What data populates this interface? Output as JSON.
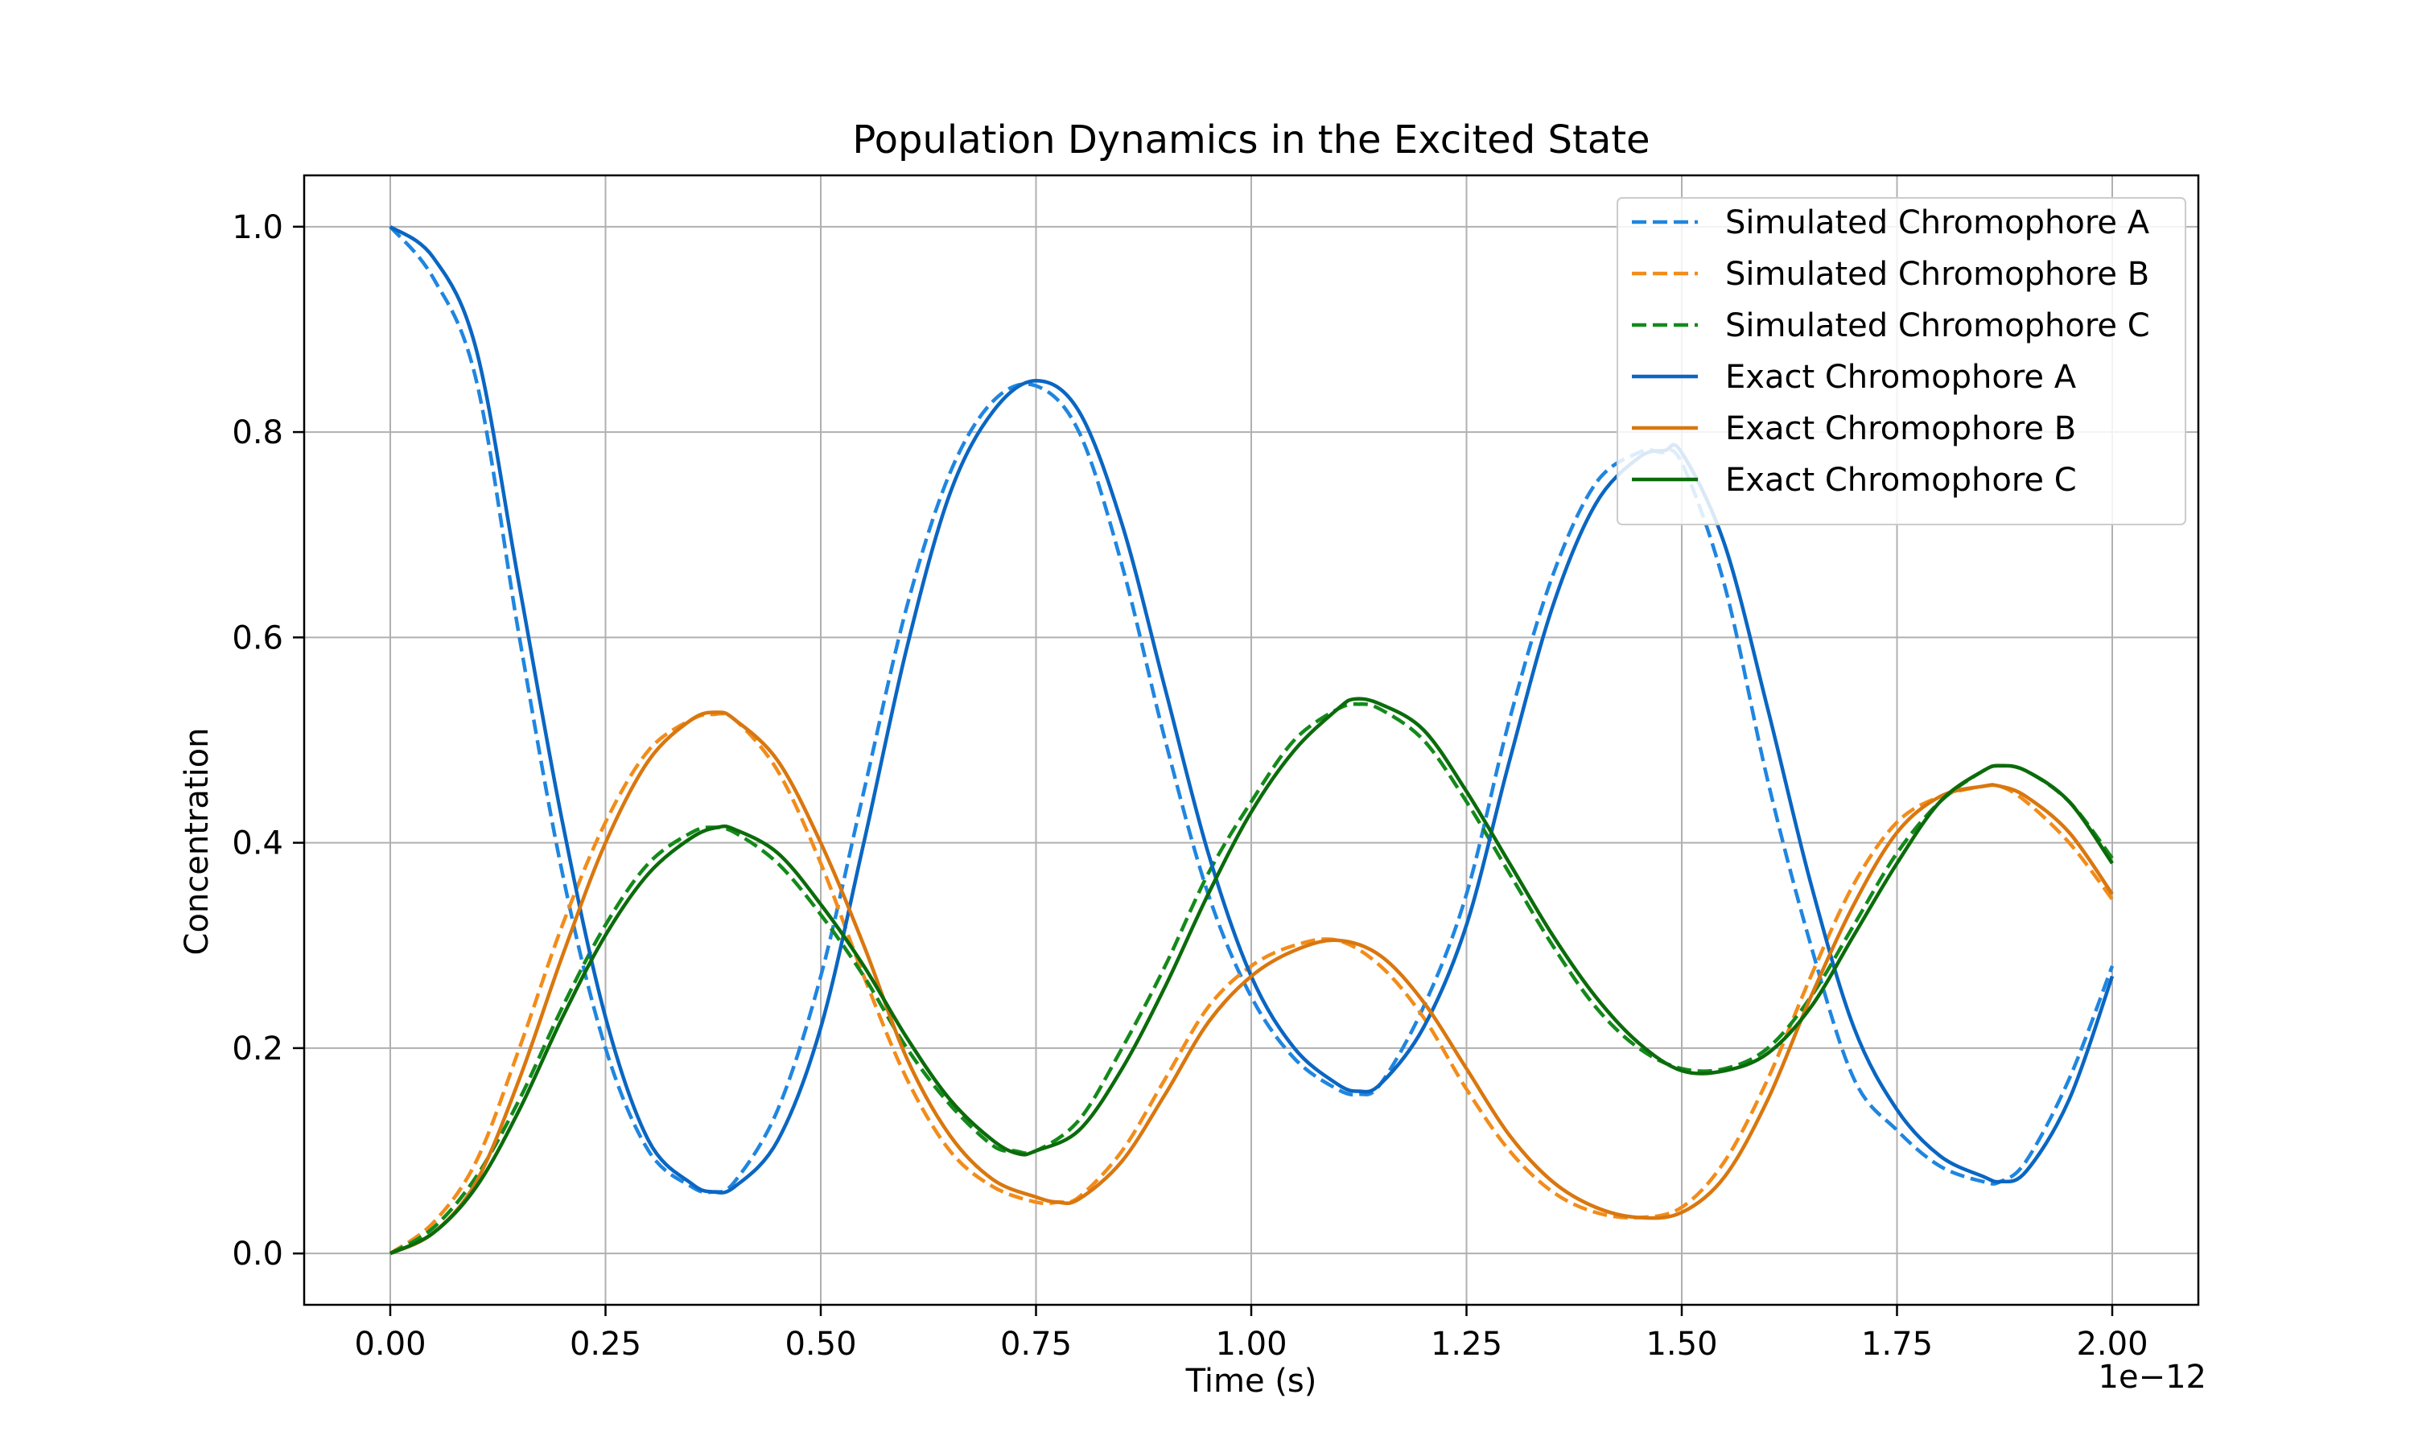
{
  "chart_data": {
    "type": "line",
    "title": "Population Dynamics in the Excited State",
    "xlabel": "Time (s)",
    "ylabel": "Concentration",
    "x_offset_label": "1e−12",
    "xlim": [
      -0.1,
      2.1
    ],
    "ylim": [
      -0.05,
      1.05
    ],
    "x_ticks": [
      0,
      0.25,
      0.5,
      0.75,
      1.0,
      1.25,
      1.5,
      1.75,
      2.0
    ],
    "x_tick_labels": [
      "0.00",
      "0.25",
      "0.50",
      "0.75",
      "1.00",
      "1.25",
      "1.50",
      "1.75",
      "2.00"
    ],
    "y_ticks": [
      0,
      0.2,
      0.4,
      0.6,
      0.8,
      1.0
    ],
    "y_tick_labels": [
      "0.0",
      "0.2",
      "0.4",
      "0.6",
      "0.8",
      "1.0"
    ],
    "grid": true,
    "legend_position": "top-right",
    "series": [
      {
        "name": "Simulated Chromophore A",
        "style": "dashed",
        "color": "#1f86e0",
        "x": [
          0,
          0.05,
          0.1,
          0.15,
          0.2,
          0.25,
          0.3,
          0.35,
          0.375,
          0.4,
          0.45,
          0.5,
          0.55,
          0.6,
          0.65,
          0.7,
          0.75,
          0.8,
          0.85,
          0.9,
          0.95,
          1.0,
          1.05,
          1.1,
          1.125,
          1.15,
          1.2,
          1.25,
          1.3,
          1.35,
          1.4,
          1.45,
          1.475,
          1.5,
          1.55,
          1.6,
          1.65,
          1.7,
          1.75,
          1.8,
          1.85,
          1.87,
          1.9,
          1.95,
          2.0
        ],
        "y": [
          1.0,
          0.95,
          0.85,
          0.6,
          0.37,
          0.2,
          0.1,
          0.065,
          0.06,
          0.07,
          0.14,
          0.27,
          0.45,
          0.63,
          0.76,
          0.83,
          0.845,
          0.8,
          0.67,
          0.5,
          0.35,
          0.25,
          0.19,
          0.16,
          0.155,
          0.165,
          0.24,
          0.35,
          0.52,
          0.66,
          0.75,
          0.78,
          0.78,
          0.77,
          0.65,
          0.46,
          0.3,
          0.17,
          0.12,
          0.085,
          0.07,
          0.07,
          0.09,
          0.17,
          0.28
        ]
      },
      {
        "name": "Simulated Chromophore B",
        "style": "dashed",
        "color": "#f28c1a",
        "x": [
          0,
          0.05,
          0.1,
          0.15,
          0.2,
          0.25,
          0.3,
          0.35,
          0.375,
          0.4,
          0.45,
          0.5,
          0.55,
          0.6,
          0.65,
          0.7,
          0.75,
          0.775,
          0.8,
          0.85,
          0.9,
          0.95,
          1.0,
          1.05,
          1.1,
          1.15,
          1.2,
          1.25,
          1.3,
          1.35,
          1.4,
          1.45,
          1.5,
          1.55,
          1.6,
          1.65,
          1.7,
          1.75,
          1.8,
          1.85,
          1.87,
          1.9,
          1.95,
          2.0
        ],
        "y": [
          0.0,
          0.03,
          0.09,
          0.2,
          0.32,
          0.42,
          0.49,
          0.52,
          0.525,
          0.52,
          0.47,
          0.38,
          0.27,
          0.17,
          0.1,
          0.065,
          0.05,
          0.05,
          0.055,
          0.1,
          0.17,
          0.24,
          0.28,
          0.3,
          0.305,
          0.28,
          0.23,
          0.16,
          0.1,
          0.06,
          0.04,
          0.035,
          0.045,
          0.09,
          0.17,
          0.27,
          0.36,
          0.42,
          0.445,
          0.455,
          0.455,
          0.44,
          0.4,
          0.345
        ]
      },
      {
        "name": "Simulated Chromophore C",
        "style": "dashed",
        "color": "#138a1a",
        "x": [
          0,
          0.05,
          0.1,
          0.15,
          0.2,
          0.25,
          0.3,
          0.35,
          0.375,
          0.4,
          0.45,
          0.5,
          0.55,
          0.6,
          0.65,
          0.7,
          0.725,
          0.75,
          0.8,
          0.85,
          0.9,
          0.95,
          1.0,
          1.05,
          1.1,
          1.125,
          1.15,
          1.2,
          1.25,
          1.3,
          1.35,
          1.4,
          1.45,
          1.5,
          1.55,
          1.6,
          1.65,
          1.7,
          1.75,
          1.8,
          1.85,
          1.87,
          1.9,
          1.95,
          2.0
        ],
        "y": [
          0.0,
          0.025,
          0.075,
          0.15,
          0.24,
          0.32,
          0.38,
          0.41,
          0.415,
          0.41,
          0.38,
          0.33,
          0.27,
          0.2,
          0.145,
          0.105,
          0.1,
          0.1,
          0.13,
          0.2,
          0.28,
          0.37,
          0.44,
          0.5,
          0.53,
          0.535,
          0.53,
          0.5,
          0.44,
          0.37,
          0.3,
          0.24,
          0.2,
          0.18,
          0.18,
          0.2,
          0.25,
          0.32,
          0.39,
          0.44,
          0.47,
          0.475,
          0.47,
          0.44,
          0.385
        ]
      },
      {
        "name": "Exact Chromophore A",
        "style": "solid",
        "color": "#0a66c2",
        "x": [
          0,
          0.05,
          0.1,
          0.15,
          0.2,
          0.25,
          0.3,
          0.35,
          0.375,
          0.4,
          0.45,
          0.5,
          0.55,
          0.6,
          0.65,
          0.7,
          0.75,
          0.8,
          0.85,
          0.9,
          0.95,
          1.0,
          1.05,
          1.1,
          1.125,
          1.15,
          1.2,
          1.25,
          1.3,
          1.35,
          1.4,
          1.45,
          1.48,
          1.5,
          1.55,
          1.6,
          1.65,
          1.7,
          1.75,
          1.8,
          1.85,
          1.87,
          1.9,
          1.95,
          2.0
        ],
        "y": [
          1.0,
          0.97,
          0.88,
          0.65,
          0.42,
          0.23,
          0.11,
          0.068,
          0.06,
          0.065,
          0.11,
          0.22,
          0.4,
          0.59,
          0.74,
          0.82,
          0.85,
          0.82,
          0.71,
          0.55,
          0.39,
          0.27,
          0.2,
          0.165,
          0.158,
          0.165,
          0.22,
          0.32,
          0.48,
          0.63,
          0.73,
          0.775,
          0.782,
          0.78,
          0.69,
          0.53,
          0.36,
          0.22,
          0.14,
          0.095,
          0.075,
          0.07,
          0.08,
          0.15,
          0.27
        ]
      },
      {
        "name": "Exact Chromophore B",
        "style": "solid",
        "color": "#d9770f",
        "x": [
          0,
          0.05,
          0.1,
          0.15,
          0.2,
          0.25,
          0.3,
          0.35,
          0.38,
          0.4,
          0.45,
          0.5,
          0.55,
          0.6,
          0.65,
          0.7,
          0.75,
          0.775,
          0.8,
          0.85,
          0.9,
          0.95,
          1.0,
          1.05,
          1.1,
          1.15,
          1.2,
          1.25,
          1.3,
          1.35,
          1.4,
          1.45,
          1.5,
          1.55,
          1.6,
          1.65,
          1.7,
          1.75,
          1.8,
          1.85,
          1.87,
          1.9,
          1.95,
          2.0
        ],
        "y": [
          0.0,
          0.02,
          0.07,
          0.17,
          0.29,
          0.4,
          0.48,
          0.52,
          0.527,
          0.52,
          0.48,
          0.4,
          0.3,
          0.19,
          0.115,
          0.072,
          0.055,
          0.05,
          0.053,
          0.09,
          0.155,
          0.225,
          0.27,
          0.295,
          0.305,
          0.29,
          0.245,
          0.18,
          0.115,
          0.07,
          0.045,
          0.035,
          0.04,
          0.075,
          0.15,
          0.25,
          0.34,
          0.41,
          0.445,
          0.455,
          0.455,
          0.445,
          0.41,
          0.35
        ]
      },
      {
        "name": "Exact Chromophore C",
        "style": "solid",
        "color": "#0b6b0b",
        "x": [
          0,
          0.05,
          0.1,
          0.15,
          0.2,
          0.25,
          0.3,
          0.35,
          0.38,
          0.4,
          0.45,
          0.5,
          0.55,
          0.6,
          0.65,
          0.7,
          0.73,
          0.75,
          0.8,
          0.85,
          0.9,
          0.95,
          1.0,
          1.05,
          1.1,
          1.12,
          1.15,
          1.2,
          1.25,
          1.3,
          1.35,
          1.4,
          1.45,
          1.5,
          1.55,
          1.6,
          1.65,
          1.7,
          1.75,
          1.8,
          1.85,
          1.87,
          1.9,
          1.95,
          2.0
        ],
        "y": [
          0.0,
          0.02,
          0.065,
          0.14,
          0.23,
          0.31,
          0.37,
          0.405,
          0.415,
          0.413,
          0.39,
          0.34,
          0.28,
          0.21,
          0.15,
          0.11,
          0.097,
          0.1,
          0.12,
          0.18,
          0.26,
          0.35,
          0.43,
          0.49,
          0.53,
          0.54,
          0.535,
          0.51,
          0.45,
          0.38,
          0.31,
          0.25,
          0.205,
          0.178,
          0.178,
          0.195,
          0.24,
          0.31,
          0.38,
          0.44,
          0.47,
          0.475,
          0.47,
          0.44,
          0.38
        ]
      }
    ]
  }
}
